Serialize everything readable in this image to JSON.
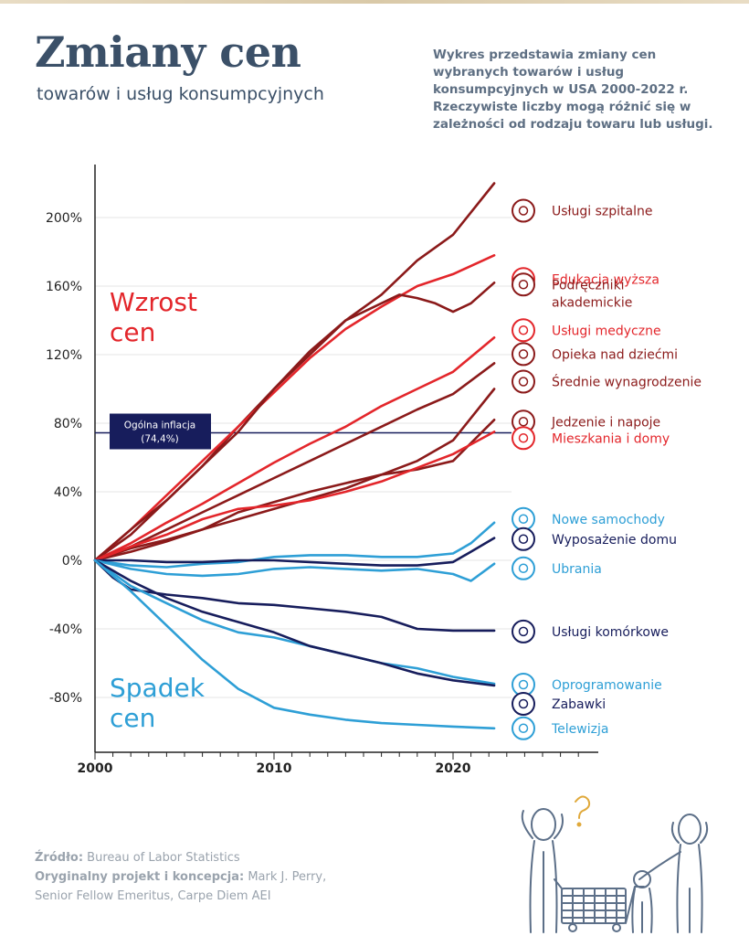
{
  "header": {
    "title": "Zmiany cen",
    "subtitle": "towarów i usług konsumpcyjnych",
    "description": "Wykres przedstawia zmiany cen wybranych towarów i usług konsumpcyjnych w USA 2000-2022 r. Rzeczywiste liczby mogą różnić się w zależności od rodzaju towaru lub usługi."
  },
  "footer": {
    "source_label": "Źródło:",
    "source_value": "Bureau of Labor Statistics",
    "project_label": "Oryginalny projekt i koncepcja:",
    "project_value": "Mark J. Perry,",
    "project_value_2": "Senior Fellow Emeritus, Carpe Diem AEI"
  },
  "colors": {
    "dark_red": "#8b1a1a",
    "red": "#e3262b",
    "navy": "#171d5c",
    "light_blue": "#2e9fd6",
    "inflation_box": "#171d5c"
  },
  "chart_data": {
    "type": "line",
    "x_ticks": [
      2000,
      2010,
      2020
    ],
    "xlim": [
      2000,
      2027
    ],
    "ylim": [
      -112,
      230
    ],
    "y_ticks": [
      200,
      160,
      120,
      80,
      40,
      0,
      -40,
      -80
    ],
    "y_tick_labels": [
      "200%",
      "160%",
      "120%",
      "80%",
      "40%",
      "0%",
      "-40%",
      "-80%"
    ],
    "annotations": {
      "increase_label": [
        "Wzrost",
        "cen"
      ],
      "decrease_label": [
        "Spadek",
        "cen"
      ]
    },
    "reference_line": {
      "label": "Ogólna inflacja",
      "value_label": "(74,4%)",
      "value": 74.4
    },
    "series": [
      {
        "name": "Usługi szpitalne",
        "color_key": "dark_red",
        "icon": "heart-pulse-icon",
        "points": [
          [
            2000,
            0
          ],
          [
            2002,
            15
          ],
          [
            2004,
            35
          ],
          [
            2006,
            55
          ],
          [
            2008,
            78
          ],
          [
            2010,
            100
          ],
          [
            2012,
            120
          ],
          [
            2014,
            140
          ],
          [
            2016,
            155
          ],
          [
            2018,
            175
          ],
          [
            2020,
            190
          ],
          [
            2022.3,
            220
          ]
        ]
      },
      {
        "name": "Edukacja wyższa",
        "color_key": "red",
        "icon": "graduation-cap-icon",
        "points": [
          [
            2000,
            0
          ],
          [
            2002,
            18
          ],
          [
            2004,
            38
          ],
          [
            2006,
            58
          ],
          [
            2008,
            78
          ],
          [
            2010,
            98
          ],
          [
            2012,
            118
          ],
          [
            2014,
            135
          ],
          [
            2016,
            148
          ],
          [
            2018,
            160
          ],
          [
            2020,
            167
          ],
          [
            2022.3,
            178
          ]
        ]
      },
      {
        "name": "Podręczniki akademickie",
        "color_key": "dark_red",
        "icon": "book-icon",
        "label_lines": [
          "Podręczniki",
          "akademickie"
        ],
        "points": [
          [
            2000,
            0
          ],
          [
            2002,
            18
          ],
          [
            2004,
            35
          ],
          [
            2006,
            55
          ],
          [
            2008,
            75
          ],
          [
            2010,
            100
          ],
          [
            2012,
            122
          ],
          [
            2014,
            140
          ],
          [
            2016,
            150
          ],
          [
            2017,
            155
          ],
          [
            2018,
            153
          ],
          [
            2019,
            150
          ],
          [
            2020,
            145
          ],
          [
            2021,
            150
          ],
          [
            2022.3,
            162
          ]
        ]
      },
      {
        "name": "Usługi medyczne",
        "color_key": "red",
        "icon": "medical-cross-icon",
        "points": [
          [
            2000,
            0
          ],
          [
            2002,
            10
          ],
          [
            2004,
            22
          ],
          [
            2006,
            33
          ],
          [
            2008,
            45
          ],
          [
            2010,
            57
          ],
          [
            2012,
            68
          ],
          [
            2014,
            78
          ],
          [
            2016,
            90
          ],
          [
            2018,
            100
          ],
          [
            2020,
            110
          ],
          [
            2022.3,
            130
          ]
        ]
      },
      {
        "name": "Opieka nad dziećmi",
        "color_key": "dark_red",
        "icon": "childcare-icon",
        "points": [
          [
            2000,
            0
          ],
          [
            2002,
            8
          ],
          [
            2004,
            18
          ],
          [
            2006,
            28
          ],
          [
            2008,
            38
          ],
          [
            2010,
            48
          ],
          [
            2012,
            58
          ],
          [
            2014,
            68
          ],
          [
            2016,
            78
          ],
          [
            2018,
            88
          ],
          [
            2020,
            97
          ],
          [
            2022.3,
            115
          ]
        ]
      },
      {
        "name": "Średnie wynagrodzenie",
        "color_key": "dark_red",
        "icon": "dollar-coin-icon",
        "points": [
          [
            2000,
            0
          ],
          [
            2002,
            7
          ],
          [
            2004,
            12
          ],
          [
            2006,
            18
          ],
          [
            2008,
            24
          ],
          [
            2010,
            30
          ],
          [
            2012,
            36
          ],
          [
            2014,
            42
          ],
          [
            2016,
            50
          ],
          [
            2018,
            58
          ],
          [
            2020,
            70
          ],
          [
            2022.3,
            100
          ]
        ]
      },
      {
        "name": "Jedzenie i napoje",
        "color_key": "dark_red",
        "icon": "fork-knife-icon",
        "points": [
          [
            2000,
            0
          ],
          [
            2002,
            5
          ],
          [
            2004,
            11
          ],
          [
            2006,
            18
          ],
          [
            2008,
            28
          ],
          [
            2010,
            34
          ],
          [
            2012,
            40
          ],
          [
            2014,
            45
          ],
          [
            2016,
            50
          ],
          [
            2018,
            53
          ],
          [
            2020,
            58
          ],
          [
            2022.3,
            82
          ]
        ]
      },
      {
        "name": "Mieszkania i domy",
        "color_key": "red",
        "icon": "house-icon",
        "points": [
          [
            2000,
            0
          ],
          [
            2002,
            8
          ],
          [
            2004,
            15
          ],
          [
            2006,
            24
          ],
          [
            2008,
            30
          ],
          [
            2010,
            32
          ],
          [
            2012,
            35
          ],
          [
            2014,
            40
          ],
          [
            2016,
            46
          ],
          [
            2018,
            54
          ],
          [
            2020,
            62
          ],
          [
            2022.3,
            75
          ]
        ]
      },
      {
        "name": "Nowe samochody",
        "color_key": "light_blue",
        "icon": "car-icon",
        "points": [
          [
            2000,
            0
          ],
          [
            2002,
            -3
          ],
          [
            2004,
            -4
          ],
          [
            2006,
            -2
          ],
          [
            2008,
            -1
          ],
          [
            2010,
            2
          ],
          [
            2012,
            3
          ],
          [
            2014,
            3
          ],
          [
            2016,
            2
          ],
          [
            2018,
            2
          ],
          [
            2020,
            4
          ],
          [
            2021,
            10
          ],
          [
            2022.3,
            22
          ]
        ]
      },
      {
        "name": "Wyposażenie domu",
        "color_key": "navy",
        "icon": "furniture-icon",
        "points": [
          [
            2000,
            0
          ],
          [
            2002,
            0
          ],
          [
            2004,
            -1
          ],
          [
            2006,
            -1
          ],
          [
            2008,
            0
          ],
          [
            2010,
            0
          ],
          [
            2012,
            -1
          ],
          [
            2014,
            -2
          ],
          [
            2016,
            -3
          ],
          [
            2018,
            -3
          ],
          [
            2020,
            -1
          ],
          [
            2021,
            5
          ],
          [
            2022.3,
            13
          ]
        ]
      },
      {
        "name": "Ubrania",
        "color_key": "light_blue",
        "icon": "gift-box-icon",
        "points": [
          [
            2000,
            0
          ],
          [
            2002,
            -5
          ],
          [
            2004,
            -8
          ],
          [
            2006,
            -9
          ],
          [
            2008,
            -8
          ],
          [
            2010,
            -5
          ],
          [
            2012,
            -4
          ],
          [
            2014,
            -5
          ],
          [
            2016,
            -6
          ],
          [
            2018,
            -5
          ],
          [
            2020,
            -8
          ],
          [
            2021,
            -12
          ],
          [
            2022.3,
            -2
          ]
        ]
      },
      {
        "name": "Usługi komórkowe",
        "color_key": "navy",
        "icon": "smartphone-icon",
        "points": [
          [
            2000,
            0
          ],
          [
            2001,
            -10
          ],
          [
            2002,
            -17
          ],
          [
            2004,
            -20
          ],
          [
            2006,
            -22
          ],
          [
            2008,
            -25
          ],
          [
            2010,
            -26
          ],
          [
            2012,
            -28
          ],
          [
            2014,
            -30
          ],
          [
            2016,
            -33
          ],
          [
            2018,
            -40
          ],
          [
            2020,
            -41
          ],
          [
            2022.3,
            -41
          ]
        ]
      },
      {
        "name": "Oprogramowanie",
        "color_key": "light_blue",
        "icon": "no-software-icon",
        "points": [
          [
            2000,
            0
          ],
          [
            2002,
            -15
          ],
          [
            2004,
            -25
          ],
          [
            2006,
            -35
          ],
          [
            2008,
            -42
          ],
          [
            2010,
            -45
          ],
          [
            2012,
            -50
          ],
          [
            2014,
            -55
          ],
          [
            2016,
            -60
          ],
          [
            2018,
            -63
          ],
          [
            2020,
            -68
          ],
          [
            2022.3,
            -72
          ]
        ]
      },
      {
        "name": "Zabawki",
        "color_key": "navy",
        "icon": "puzzle-icon",
        "points": [
          [
            2000,
            0
          ],
          [
            2002,
            -12
          ],
          [
            2004,
            -22
          ],
          [
            2006,
            -30
          ],
          [
            2008,
            -36
          ],
          [
            2010,
            -42
          ],
          [
            2012,
            -50
          ],
          [
            2014,
            -55
          ],
          [
            2016,
            -60
          ],
          [
            2018,
            -66
          ],
          [
            2020,
            -70
          ],
          [
            2022.3,
            -73
          ]
        ]
      },
      {
        "name": "Telewizja",
        "color_key": "light_blue",
        "icon": "tv-icon",
        "points": [
          [
            2000,
            0
          ],
          [
            2002,
            -18
          ],
          [
            2004,
            -38
          ],
          [
            2006,
            -58
          ],
          [
            2008,
            -75
          ],
          [
            2010,
            -86
          ],
          [
            2012,
            -90
          ],
          [
            2014,
            -93
          ],
          [
            2016,
            -95
          ],
          [
            2018,
            -96
          ],
          [
            2020,
            -97
          ],
          [
            2022.3,
            -98
          ]
        ]
      }
    ]
  }
}
